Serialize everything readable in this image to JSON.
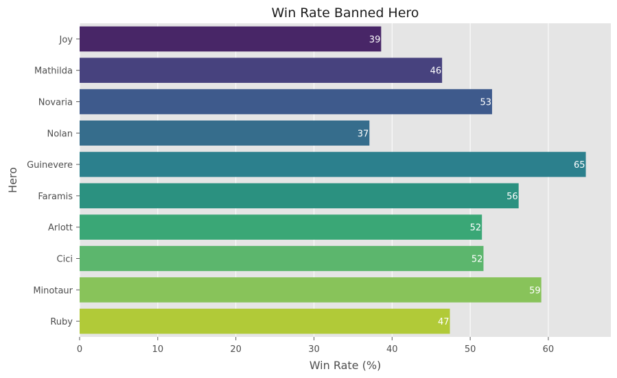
{
  "chart_data": {
    "type": "bar",
    "orientation": "horizontal",
    "title": "Win Rate Banned Hero",
    "xlabel": "Win Rate (%)",
    "ylabel": "Hero",
    "categories": [
      "Joy",
      "Mathilda",
      "Novaria",
      "Nolan",
      "Guinevere",
      "Faramis",
      "Arlott",
      "Cici",
      "Minotaur",
      "Ruby"
    ],
    "values": [
      38.6,
      46.4,
      52.8,
      37.1,
      64.8,
      56.2,
      51.5,
      51.7,
      59.1,
      47.4
    ],
    "data_labels": [
      "39",
      "46",
      "53",
      "37",
      "65",
      "56",
      "52",
      "52",
      "59",
      "47"
    ],
    "colors": [
      "#482667",
      "#47427e",
      "#3e5a8c",
      "#366d8c",
      "#2c808d",
      "#2b9180",
      "#3aa776",
      "#5cb66d",
      "#88c35a",
      "#b1ca38"
    ],
    "xlim": [
      0,
      68
    ],
    "xticks": [
      0,
      10,
      20,
      30,
      40,
      50,
      60
    ],
    "xtick_labels": [
      "0",
      "10",
      "20",
      "30",
      "40",
      "50",
      "60"
    ],
    "grid": true,
    "background": "#e5e5e5",
    "grid_color": "#ffffff"
  }
}
